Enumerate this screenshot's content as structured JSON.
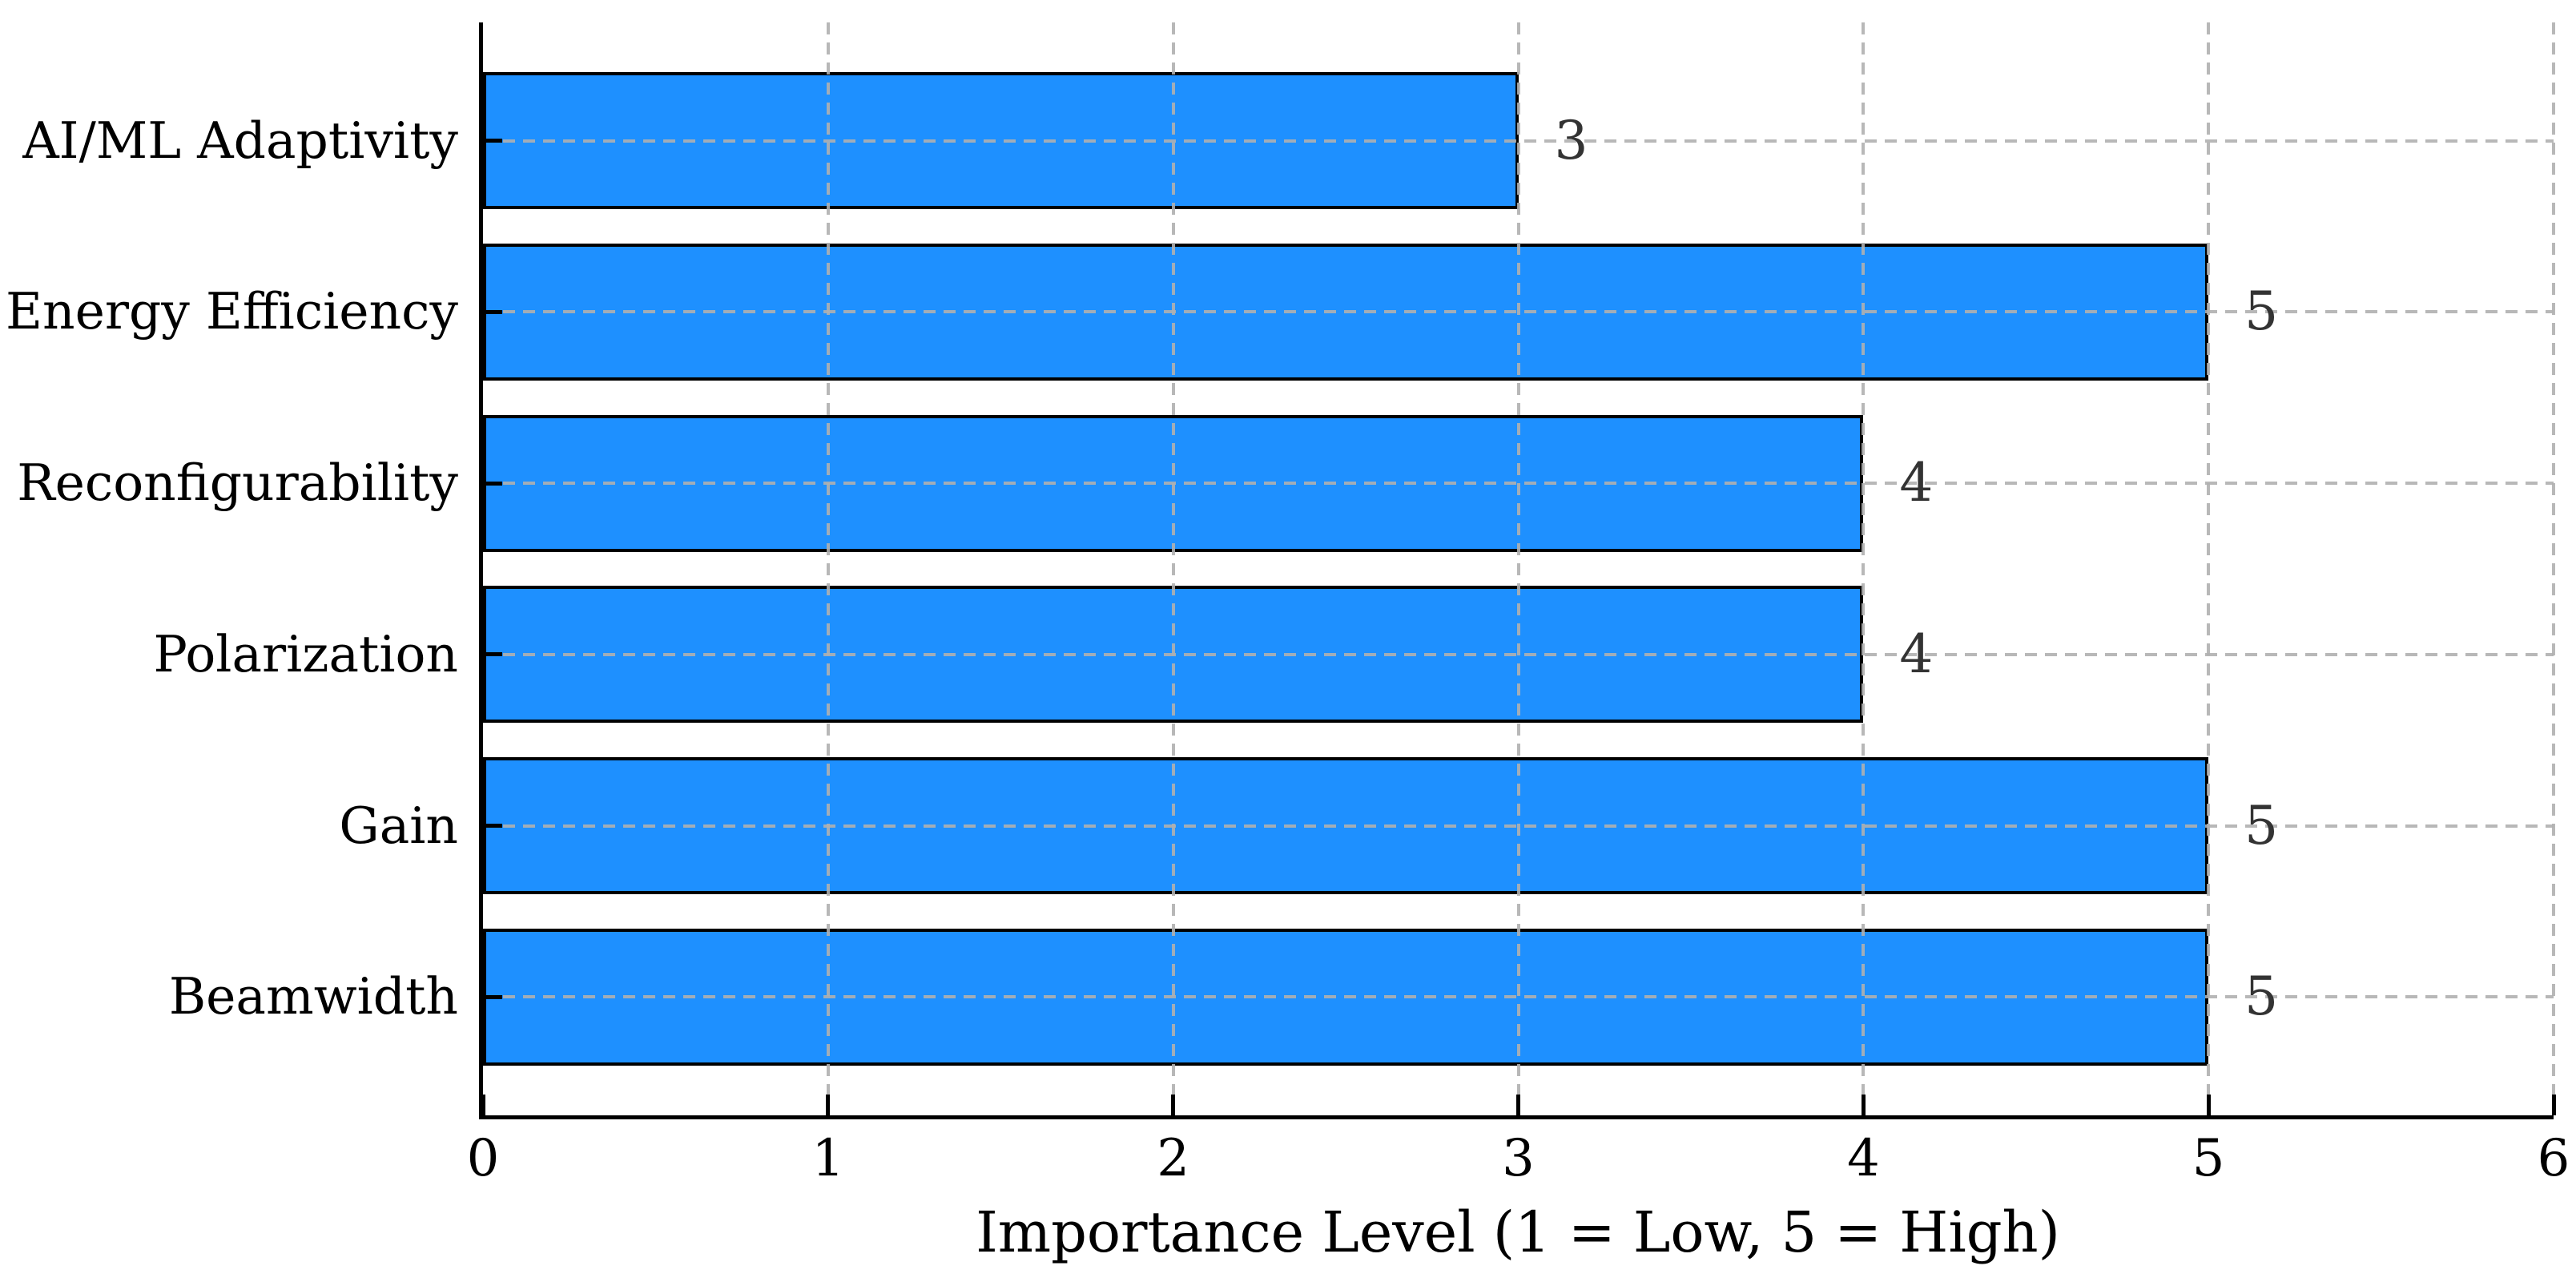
{
  "figure": {
    "background_color": "#ffffff",
    "title": ""
  },
  "chart_data": {
    "type": "bar",
    "orientation": "horizontal",
    "categories": [
      "AI/ML Adaptivity",
      "Energy Efficiency",
      "Reconfigurability",
      "Polarization",
      "Gain",
      "Beamwidth"
    ],
    "values": [
      3,
      5,
      4,
      4,
      5,
      5
    ],
    "value_labels": [
      "3",
      "5",
      "4",
      "4",
      "5",
      "5"
    ],
    "title": "",
    "xlabel": "Importance Level (1 = Low, 5 = High)",
    "ylabel": "",
    "xlim": [
      0,
      6
    ],
    "xticks": [
      0,
      1,
      2,
      3,
      4,
      5,
      6
    ],
    "xtick_labels": [
      "0",
      "1",
      "2",
      "3",
      "4",
      "5",
      "6"
    ],
    "bar_height_fraction": 0.8,
    "grid": "on",
    "grid_style": "dashed",
    "grid_axes": "both",
    "grid_over_bars": true,
    "tick_direction": "in",
    "legend_position": "none",
    "colors": {
      "bar_fill": "#1e90ff",
      "bar_edge": "#000000",
      "gridline": "#b0b0b0",
      "axis": "#000000",
      "tick_label": "#000000",
      "value_label": "#333333"
    }
  }
}
